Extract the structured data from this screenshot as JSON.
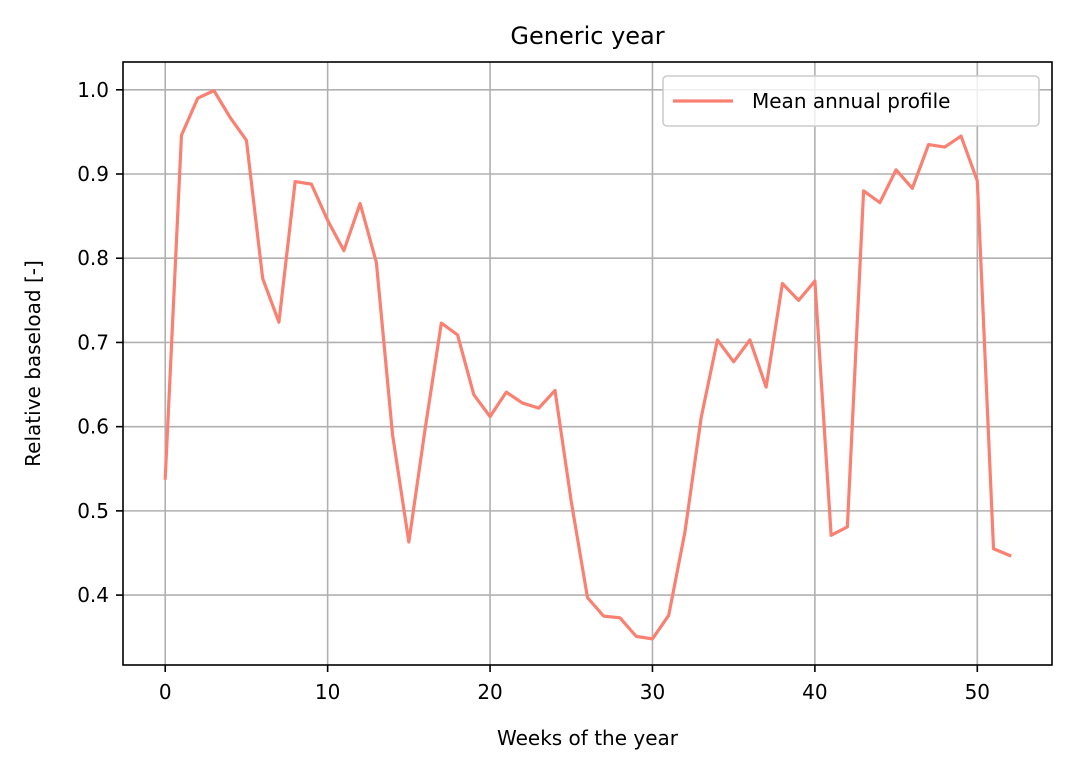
{
  "chart_data": {
    "type": "line",
    "title": "Generic year",
    "xlabel": "Weeks of the year",
    "ylabel": "Relative baseload [-]",
    "xlim": [
      -2.6,
      54.6
    ],
    "ylim": [
      0.317,
      1.033
    ],
    "xticks": [
      0,
      10,
      20,
      30,
      40,
      50
    ],
    "xtick_labels": [
      "0",
      "10",
      "20",
      "30",
      "40",
      "50"
    ],
    "yticks": [
      0.4,
      0.5,
      0.6,
      0.7,
      0.8,
      0.9,
      1.0
    ],
    "ytick_labels": [
      "0.4",
      "0.5",
      "0.6",
      "0.7",
      "0.8",
      "0.9",
      "1.0"
    ],
    "grid": true,
    "legend_position": "top-right",
    "series": [
      {
        "name": "Mean annual profile",
        "color": "#fa8072",
        "x": [
          0,
          1,
          2,
          3,
          4,
          5,
          6,
          7,
          8,
          9,
          10,
          11,
          12,
          13,
          14,
          15,
          16,
          17,
          18,
          19,
          20,
          21,
          22,
          23,
          24,
          25,
          26,
          27,
          28,
          29,
          30,
          31,
          32,
          33,
          34,
          35,
          36,
          37,
          38,
          39,
          40,
          41,
          42,
          43,
          44,
          45,
          46,
          47,
          48,
          49,
          50,
          51,
          52
        ],
        "y": [
          0.539,
          0.946,
          0.99,
          0.999,
          0.967,
          0.94,
          0.776,
          0.724,
          0.891,
          0.888,
          0.845,
          0.809,
          0.865,
          0.795,
          0.59,
          0.463,
          0.597,
          0.723,
          0.709,
          0.638,
          0.612,
          0.641,
          0.628,
          0.622,
          0.643,
          0.511,
          0.397,
          0.375,
          0.373,
          0.351,
          0.348,
          0.376,
          0.475,
          0.611,
          0.703,
          0.677,
          0.703,
          0.647,
          0.77,
          0.75,
          0.773,
          0.471,
          0.481,
          0.88,
          0.866,
          0.905,
          0.883,
          0.935,
          0.932,
          0.945,
          0.892,
          0.455,
          0.447
        ]
      }
    ]
  }
}
